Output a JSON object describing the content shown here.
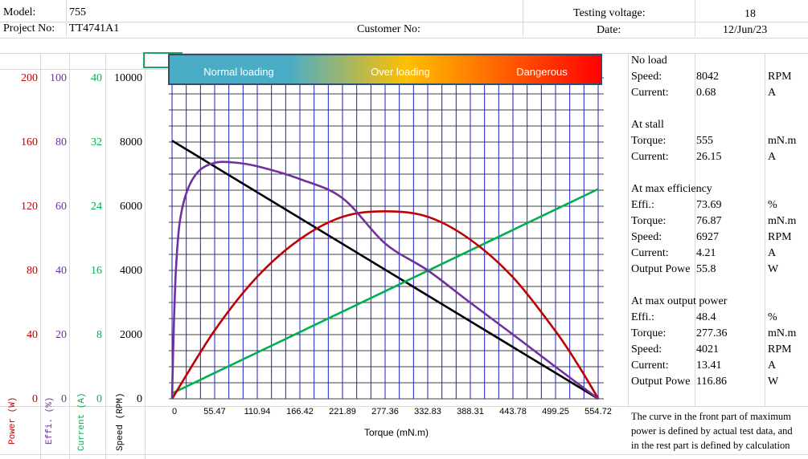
{
  "header": {
    "model_label": "Model:",
    "model_value": "755",
    "project_label": "Project No:",
    "project_value": "TT4741A1",
    "customer_label": "Customer No:",
    "voltage_label": "Testing voltage:",
    "voltage_value": "18",
    "date_label": "Date:",
    "date_value": "12/Jun/23"
  },
  "banner": {
    "normal": "Normal loading",
    "over": "Over loading",
    "danger": "Dangerous",
    "colors": [
      "#4bacc6",
      "#ffc000",
      "#ff0000"
    ]
  },
  "axes": {
    "power": {
      "label": "Power (W)",
      "color": "#c00000",
      "ticks": [
        "200",
        "160",
        "120",
        "80",
        "40",
        "0"
      ]
    },
    "effi": {
      "label": "Effi. (%)",
      "color": "#7030a0",
      "ticks": [
        "100",
        "80",
        "60",
        "40",
        "20",
        "0"
      ]
    },
    "current": {
      "label": "Current (A)",
      "color": "#00b050",
      "ticks": [
        "40",
        "32",
        "24",
        "16",
        "8",
        "0"
      ]
    },
    "speed": {
      "label": "Speed (RPM)",
      "color": "#000000",
      "ticks": [
        "10000",
        "8000",
        "6000",
        "4000",
        "2000",
        "0"
      ]
    }
  },
  "chart_data": {
    "type": "line",
    "xlabel": "Torque (mN.m)",
    "x_ticks": [
      "0",
      "55.47",
      "110.94",
      "166.42",
      "221.89",
      "277.36",
      "332.83",
      "388.31",
      "443.78",
      "499.25",
      "554.72"
    ],
    "xlim": [
      0,
      554.72
    ],
    "grid": true,
    "series": [
      {
        "axis": "speed",
        "color": "#000000",
        "x": [
          0,
          555
        ],
        "values": [
          8042,
          0
        ]
      },
      {
        "axis": "current",
        "color": "#00b050",
        "x": [
          0,
          555
        ],
        "values": [
          0.68,
          26.15
        ]
      },
      {
        "axis": "power",
        "color": "#c00000",
        "x": [
          0,
          55,
          110,
          166,
          222,
          277.36,
          333,
          388,
          444,
          499,
          530,
          555
        ],
        "values": [
          0,
          42.3,
          75.6,
          99.3,
          113.4,
          116.86,
          113.4,
          99.3,
          75.6,
          42.3,
          20,
          0
        ]
      },
      {
        "axis": "effi",
        "color": "#7030a0",
        "x": [
          0,
          2,
          5,
          10,
          20,
          35,
          55,
          76.87,
          110,
          166,
          222,
          277.36,
          333,
          388,
          444,
          499,
          555
        ],
        "values": [
          0,
          20,
          40,
          55,
          65,
          71,
          73.5,
          73.69,
          72.5,
          68.5,
          62.5,
          48.4,
          40,
          30,
          20,
          10,
          0
        ]
      }
    ]
  },
  "panel": {
    "no_load": {
      "title": "No load",
      "rows": [
        {
          "label": "Speed:",
          "value": "8042",
          "unit": "RPM"
        },
        {
          "label": "Current:",
          "value": "0.68",
          "unit": "A"
        }
      ]
    },
    "stall": {
      "title": "At stall",
      "rows": [
        {
          "label": "Torque:",
          "value": "555",
          "unit": "mN.m"
        },
        {
          "label": "Current:",
          "value": "26.15",
          "unit": "A"
        }
      ]
    },
    "max_eff": {
      "title": "At max efficiency",
      "rows": [
        {
          "label": "Effi.:",
          "value": "73.69",
          "unit": "%"
        },
        {
          "label": "Torque:",
          "value": "76.87",
          "unit": "mN.m"
        },
        {
          "label": "Speed:",
          "value": "6927",
          "unit": "RPM"
        },
        {
          "label": "Current:",
          "value": "4.21",
          "unit": "A"
        },
        {
          "label": "Output Powe",
          "value": "55.8",
          "unit": "W"
        }
      ]
    },
    "max_out": {
      "title": "At max output power",
      "rows": [
        {
          "label": "Effi.:",
          "value": "48.4",
          "unit": "%"
        },
        {
          "label": "Torque:",
          "value": "277.36",
          "unit": "mN.m"
        },
        {
          "label": "Speed:",
          "value": "4021",
          "unit": "RPM"
        },
        {
          "label": "Current:",
          "value": "13.41",
          "unit": "A"
        },
        {
          "label": "Output Powe",
          "value": "116.86",
          "unit": "W"
        }
      ]
    },
    "note": [
      "The curve in the front part of maximum",
      "power is defined by actual test data, and",
      "in the rest part is defined by calculation"
    ]
  }
}
